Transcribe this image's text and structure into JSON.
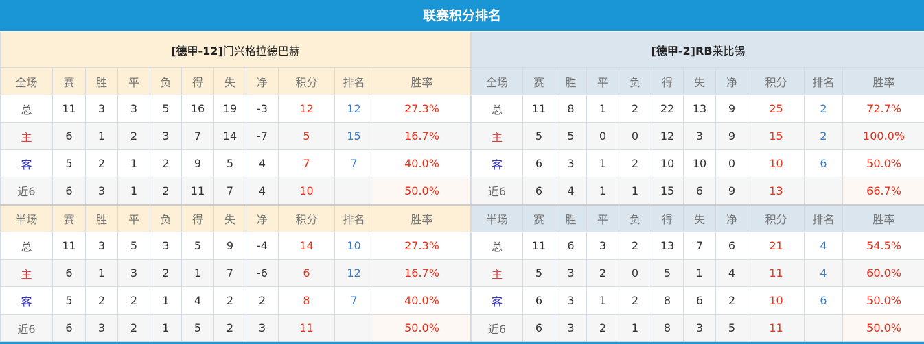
{
  "title": "联赛积分排名",
  "colors": {
    "header_bg": "#1a96d6",
    "points": "#e8321c",
    "rank": "#3a7cc6"
  },
  "teams": [
    {
      "league_tag": "[德甲-12]",
      "name": "门兴格拉德巴赫",
      "sections": [
        {
          "headers": [
            "全场",
            "赛",
            "胜",
            "平",
            "负",
            "得",
            "失",
            "净",
            "积分",
            "排名",
            "胜率"
          ],
          "rows": [
            [
              "总",
              "11",
              "3",
              "3",
              "5",
              "16",
              "19",
              "-3",
              "12",
              "12",
              "27.3%"
            ],
            [
              "主",
              "6",
              "1",
              "2",
              "3",
              "7",
              "14",
              "-7",
              "5",
              "15",
              "16.7%"
            ],
            [
              "客",
              "5",
              "2",
              "1",
              "2",
              "9",
              "5",
              "4",
              "7",
              "7",
              "40.0%"
            ],
            [
              "近6",
              "6",
              "3",
              "1",
              "2",
              "11",
              "7",
              "4",
              "10",
              "",
              "50.0%"
            ]
          ]
        },
        {
          "headers": [
            "半场",
            "赛",
            "胜",
            "平",
            "负",
            "得",
            "失",
            "净",
            "积分",
            "排名",
            "胜率"
          ],
          "rows": [
            [
              "总",
              "11",
              "3",
              "5",
              "3",
              "5",
              "9",
              "-4",
              "14",
              "10",
              "27.3%"
            ],
            [
              "主",
              "6",
              "1",
              "3",
              "2",
              "1",
              "7",
              "-6",
              "6",
              "12",
              "16.7%"
            ],
            [
              "客",
              "5",
              "2",
              "2",
              "1",
              "4",
              "2",
              "2",
              "8",
              "7",
              "40.0%"
            ],
            [
              "近6",
              "6",
              "3",
              "2",
              "1",
              "5",
              "2",
              "3",
              "11",
              "",
              "50.0%"
            ]
          ]
        }
      ]
    },
    {
      "league_tag": "[德甲-2]",
      "name_bold": "RB",
      "name": "莱比锡",
      "sections": [
        {
          "headers": [
            "全场",
            "赛",
            "胜",
            "平",
            "负",
            "得",
            "失",
            "净",
            "积分",
            "排名",
            "胜率"
          ],
          "rows": [
            [
              "总",
              "11",
              "8",
              "1",
              "2",
              "22",
              "13",
              "9",
              "25",
              "2",
              "72.7%"
            ],
            [
              "主",
              "5",
              "5",
              "0",
              "0",
              "12",
              "3",
              "9",
              "15",
              "2",
              "100.0%"
            ],
            [
              "客",
              "6",
              "3",
              "1",
              "2",
              "10",
              "10",
              "0",
              "10",
              "6",
              "50.0%"
            ],
            [
              "近6",
              "6",
              "4",
              "1",
              "1",
              "15",
              "6",
              "9",
              "13",
              "",
              "66.7%"
            ]
          ]
        },
        {
          "headers": [
            "半场",
            "赛",
            "胜",
            "平",
            "负",
            "得",
            "失",
            "净",
            "积分",
            "排名",
            "胜率"
          ],
          "rows": [
            [
              "总",
              "11",
              "6",
              "3",
              "2",
              "13",
              "7",
              "6",
              "21",
              "4",
              "54.5%"
            ],
            [
              "主",
              "5",
              "3",
              "2",
              "0",
              "5",
              "1",
              "4",
              "11",
              "4",
              "60.0%"
            ],
            [
              "客",
              "6",
              "3",
              "1",
              "2",
              "8",
              "6",
              "2",
              "10",
              "6",
              "50.0%"
            ],
            [
              "近6",
              "6",
              "3",
              "2",
              "1",
              "8",
              "3",
              "5",
              "11",
              "",
              "50.0%"
            ]
          ]
        }
      ]
    }
  ]
}
